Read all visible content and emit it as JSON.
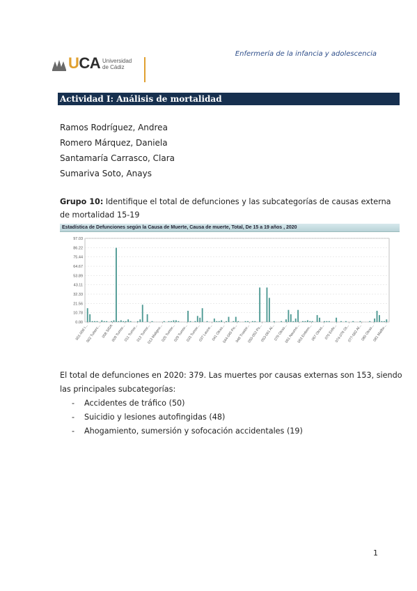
{
  "header": {
    "logo_text_u": "U",
    "logo_text_ca": "CA",
    "logo_subtitle": "Universidad\nde Cádiz",
    "subject": "Enfermería de la infancia y adolescencia"
  },
  "activity_title": "Actividad I: Análisis de mortalidad",
  "authors": [
    "Ramos Rodríguez, Andrea",
    "Romero Márquez, Daniela",
    "Santamaría Carrasco, Clara",
    "Sumariva Soto, Anays"
  ],
  "group": {
    "label": "Grupo 10:",
    "text": " Identifique el total de defunciones y las subcategorías de causas externa de mortalidad 15-19"
  },
  "chart_data": {
    "type": "bar",
    "title": "Estadística de Defunciones según la Causa de Muerte, Causa de muerte, Total, De 15 a 19 años , 2020",
    "ylim": [
      0,
      97.03
    ],
    "yticks": [
      "97.03",
      "86.22",
      "75.44",
      "64.67",
      "53.89",
      "43.11",
      "32.33",
      "21.56",
      "10.78",
      "0.00"
    ],
    "grid": true,
    "color": "#4f9a94",
    "xtick_labels": [
      "001-008 I...",
      "002 Tuberc...",
      "008 SIDA",
      "009 Tumor...",
      "011 Tumor...",
      "012 Tumor...",
      "013 Maligno...",
      "025 Tumor...",
      "029 Tumor...",
      "033 Tumor...",
      "037 Leuce...",
      "041 Otras...",
      "044-045 Pe...",
      "048 Trastor...",
      "050-052 Ps...",
      "053-061 Al...",
      "076 Otras...",
      "061 Neumo...",
      "063 Enferm...",
      "067 Otras...",
      "070 Enfe...",
      "074-076 Ot...",
      "077-082 Af...",
      "080 Otras...",
      "081 Malfor..."
    ],
    "values": [
      16,
      9,
      1,
      1,
      1,
      0,
      2,
      1,
      1,
      0,
      1,
      2,
      86,
      1,
      2,
      1,
      1,
      3,
      1,
      0,
      0,
      1,
      3,
      20,
      0,
      9,
      0,
      1,
      0,
      0,
      0,
      0,
      1,
      0,
      1,
      1,
      2,
      2,
      1,
      0,
      0,
      0,
      13,
      1,
      0,
      1,
      7,
      5,
      16,
      0,
      1,
      0,
      0,
      4,
      1,
      1,
      2,
      0,
      1,
      6,
      0,
      1,
      6,
      1,
      0,
      0,
      1,
      1,
      0,
      1,
      1,
      0,
      40,
      0,
      0,
      40,
      28,
      0,
      1,
      0,
      0,
      1,
      0,
      3,
      14,
      9,
      1,
      4,
      14,
      0,
      1,
      1,
      2,
      1,
      1,
      0,
      8,
      5,
      0,
      1,
      1,
      1,
      0,
      0,
      5,
      0,
      1,
      0,
      1,
      0,
      0,
      1,
      0,
      0,
      1,
      0,
      0,
      0,
      1,
      0,
      4,
      13,
      8,
      1,
      1,
      3
    ]
  },
  "summary": "El total de defunciones en 2020: 379. Las muertes por causas externas son 153, siendo las principales subcategorías:",
  "bullets": [
    "Accidentes de tráfico (50)",
    "Suicidio y lesiones autofingidas (48)",
    "Ahogamiento, sumersión y sofocación accidentales (19)"
  ],
  "bullet_marker": "-",
  "page_number": "1"
}
